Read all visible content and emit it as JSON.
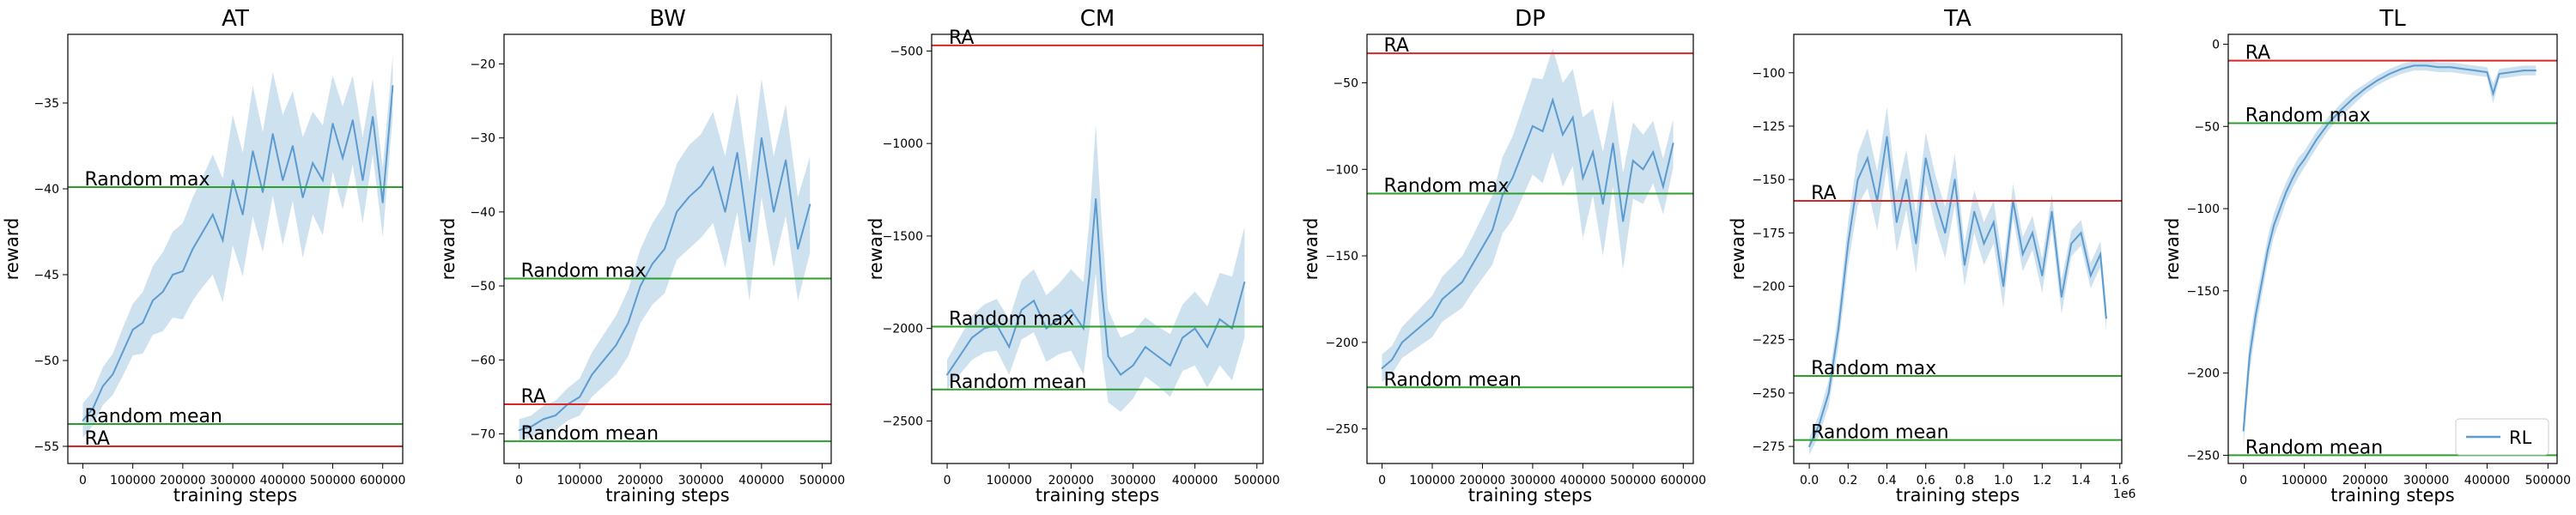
{
  "figure": {
    "legend_label": "RL"
  },
  "chart_data": [
    {
      "type": "line",
      "title": "AT",
      "xlabel": "training steps",
      "ylabel": "reward",
      "xlim": [
        -30000,
        640000
      ],
      "ylim": [
        -56,
        -31
      ],
      "xticks": [
        0,
        100000,
        200000,
        300000,
        400000,
        500000,
        600000
      ],
      "yticks": [
        -55,
        -50,
        -45,
        -40,
        -35
      ],
      "xtick_labels": [
        "0",
        "100000",
        "200000",
        "300000",
        "400000",
        "500000",
        "600000"
      ],
      "ytick_labels": [
        "−55",
        "−50",
        "−45",
        "−40",
        "−35"
      ],
      "offset_text": "",
      "hlines": [
        {
          "label": "Random max",
          "y": -39.9,
          "color": "#2ca02c"
        },
        {
          "label": "Random mean",
          "y": -53.7,
          "color": "#2ca02c"
        },
        {
          "label": "RA",
          "y": -55.0,
          "color": "#d62728"
        }
      ],
      "series": [
        {
          "x": [
            0,
            20000,
            40000,
            60000,
            80000,
            100000,
            120000,
            140000,
            160000,
            180000,
            200000,
            220000,
            240000,
            260000,
            280000,
            300000,
            320000,
            340000,
            360000,
            380000,
            400000,
            420000,
            440000,
            460000,
            480000,
            500000,
            520000,
            540000,
            560000,
            580000,
            600000,
            620000
          ],
          "y": [
            -53.5,
            -52.8,
            -51.5,
            -50.8,
            -49.5,
            -48.2,
            -47.8,
            -46.5,
            -46.0,
            -45.0,
            -44.8,
            -43.5,
            -42.5,
            -41.5,
            -43.0,
            -39.5,
            -41.5,
            -37.8,
            -40.2,
            -36.8,
            -39.5,
            -37.5,
            -40.5,
            -38.5,
            -39.5,
            -36.2,
            -38.2,
            -36.0,
            -39.5,
            -35.8,
            -40.8,
            -34.0
          ],
          "band": [
            1.0,
            1.0,
            1.1,
            1.2,
            1.4,
            1.5,
            1.8,
            2.0,
            2.3,
            2.5,
            2.8,
            3.0,
            3.2,
            3.5,
            3.6,
            3.8,
            3.6,
            3.8,
            3.5,
            3.6,
            3.8,
            3.2,
            3.5,
            3.0,
            3.2,
            2.8,
            3.0,
            2.6,
            2.5,
            2.2,
            2.0,
            1.8
          ]
        }
      ]
    },
    {
      "type": "line",
      "title": "BW",
      "xlabel": "training steps",
      "ylabel": "reward",
      "xlim": [
        -25000,
        515000
      ],
      "ylim": [
        -74,
        -16
      ],
      "xticks": [
        0,
        100000,
        200000,
        300000,
        400000,
        500000
      ],
      "yticks": [
        -70,
        -60,
        -50,
        -40,
        -30,
        -20
      ],
      "xtick_labels": [
        "0",
        "100000",
        "200000",
        "300000",
        "400000",
        "500000"
      ],
      "ytick_labels": [
        "−70",
        "−60",
        "−50",
        "−40",
        "−30",
        "−20"
      ],
      "offset_text": "",
      "hlines": [
        {
          "label": "Random max",
          "y": -49.0,
          "color": "#2ca02c"
        },
        {
          "label": "RA",
          "y": -66.0,
          "color": "#d62728"
        },
        {
          "label": "Random mean",
          "y": -71.0,
          "color": "#2ca02c"
        }
      ],
      "series": [
        {
          "x": [
            0,
            20000,
            40000,
            60000,
            80000,
            100000,
            120000,
            140000,
            160000,
            180000,
            200000,
            220000,
            240000,
            260000,
            280000,
            300000,
            320000,
            340000,
            360000,
            380000,
            400000,
            420000,
            440000,
            460000,
            480000
          ],
          "y": [
            -69.5,
            -69.0,
            -68.0,
            -67.5,
            -66.0,
            -65.0,
            -62.0,
            -60.0,
            -58.0,
            -55.0,
            -50.0,
            -47.0,
            -45.0,
            -40.0,
            -38.0,
            -36.5,
            -34.0,
            -40.0,
            -32.0,
            -44.0,
            -30.0,
            -40.0,
            -33.0,
            -45.0,
            -39.0
          ],
          "band": [
            1.5,
            1.5,
            1.8,
            2.0,
            2.2,
            2.5,
            3.0,
            3.5,
            4.0,
            4.5,
            5.0,
            5.5,
            6.0,
            6.5,
            7.0,
            7.0,
            7.5,
            7.5,
            8.0,
            8.0,
            8.0,
            7.5,
            7.5,
            7.0,
            6.5
          ]
        }
      ]
    },
    {
      "type": "line",
      "title": "CM",
      "xlabel": "training steps",
      "ylabel": "reward",
      "xlim": [
        -25000,
        510000
      ],
      "ylim": [
        -2730,
        -410
      ],
      "xticks": [
        0,
        100000,
        200000,
        300000,
        400000,
        500000
      ],
      "yticks": [
        -2500,
        -2000,
        -1500,
        -1000,
        -500
      ],
      "xtick_labels": [
        "0",
        "100000",
        "200000",
        "300000",
        "400000",
        "500000"
      ],
      "ytick_labels": [
        "−2500",
        "−2000",
        "−1500",
        "−1000",
        "−500"
      ],
      "offset_text": "",
      "hlines": [
        {
          "label": "RA",
          "y": -470,
          "color": "#d62728"
        },
        {
          "label": "Random max",
          "y": -1990,
          "color": "#2ca02c"
        },
        {
          "label": "Random mean",
          "y": -2330,
          "color": "#2ca02c"
        }
      ],
      "series": [
        {
          "x": [
            0,
            20000,
            40000,
            60000,
            80000,
            100000,
            120000,
            140000,
            160000,
            180000,
            200000,
            220000,
            230000,
            240000,
            250000,
            260000,
            280000,
            300000,
            320000,
            340000,
            360000,
            380000,
            400000,
            420000,
            440000,
            460000,
            480000
          ],
          "y": [
            -2250,
            -2150,
            -2050,
            -2000,
            -1980,
            -2100,
            -1900,
            -1850,
            -2000,
            -1950,
            -1900,
            -2000,
            -1700,
            -1300,
            -1800,
            -2150,
            -2250,
            -2200,
            -2100,
            -2150,
            -2200,
            -2050,
            -2000,
            -2100,
            -1950,
            -2000,
            -1750
          ],
          "band": [
            80,
            100,
            120,
            130,
            140,
            150,
            160,
            170,
            180,
            190,
            220,
            250,
            300,
            400,
            350,
            250,
            200,
            180,
            160,
            160,
            170,
            180,
            200,
            220,
            250,
            280,
            300
          ]
        }
      ]
    },
    {
      "type": "line",
      "title": "DP",
      "xlabel": "training steps",
      "ylabel": "reward",
      "xlim": [
        -30000,
        620000
      ],
      "ylim": [
        -270,
        -22
      ],
      "xticks": [
        0,
        100000,
        200000,
        300000,
        400000,
        500000,
        600000
      ],
      "yticks": [
        -250,
        -200,
        -150,
        -100,
        -50
      ],
      "xtick_labels": [
        "0",
        "100000",
        "200000",
        "300000",
        "400000",
        "500000",
        "600000"
      ],
      "ytick_labels": [
        "−250",
        "−200",
        "−150",
        "−100",
        "−50"
      ],
      "offset_text": "",
      "hlines": [
        {
          "label": "RA",
          "y": -33,
          "color": "#d62728"
        },
        {
          "label": "Random max",
          "y": -114,
          "color": "#2ca02c"
        },
        {
          "label": "Random mean",
          "y": -226,
          "color": "#2ca02c"
        }
      ],
      "series": [
        {
          "x": [
            0,
            20000,
            40000,
            60000,
            80000,
            100000,
            120000,
            140000,
            160000,
            180000,
            200000,
            220000,
            240000,
            260000,
            280000,
            300000,
            320000,
            340000,
            360000,
            380000,
            400000,
            420000,
            440000,
            460000,
            480000,
            500000,
            520000,
            540000,
            560000,
            580000
          ],
          "y": [
            -215,
            -210,
            -200,
            -195,
            -190,
            -185,
            -175,
            -170,
            -165,
            -155,
            -145,
            -135,
            -115,
            -105,
            -90,
            -75,
            -78,
            -60,
            -80,
            -70,
            -105,
            -90,
            -120,
            -85,
            -130,
            -95,
            -100,
            -90,
            -110,
            -85
          ],
          "band": [
            8,
            8,
            9,
            10,
            11,
            12,
            13,
            14,
            15,
            16,
            18,
            20,
            22,
            24,
            26,
            28,
            30,
            30,
            30,
            28,
            35,
            25,
            30,
            25,
            28,
            22,
            20,
            18,
            16,
            14
          ]
        }
      ]
    },
    {
      "type": "line",
      "title": "TA",
      "xlabel": "training steps",
      "ylabel": "reward",
      "xlim": [
        -80000,
        1610000
      ],
      "ylim": [
        -283,
        -82
      ],
      "xticks": [
        0,
        200000,
        400000,
        600000,
        800000,
        1000000,
        1200000,
        1400000,
        1600000
      ],
      "yticks": [
        -275,
        -250,
        -225,
        -200,
        -175,
        -150,
        -125,
        -100
      ],
      "xtick_labels": [
        "0.0",
        "0.2",
        "0.4",
        "0.6",
        "0.8",
        "1.0",
        "1.2",
        "1.4",
        "1.6"
      ],
      "ytick_labels": [
        "−275",
        "−250",
        "−225",
        "−200",
        "−175",
        "−150",
        "−125",
        "−100"
      ],
      "offset_text": "1e6",
      "hlines": [
        {
          "label": "RA",
          "y": -160,
          "color": "#d62728"
        },
        {
          "label": "Random max",
          "y": -242,
          "color": "#2ca02c"
        },
        {
          "label": "Random mean",
          "y": -272,
          "color": "#2ca02c"
        }
      ],
      "series": [
        {
          "x": [
            0,
            50000,
            100000,
            150000,
            200000,
            250000,
            300000,
            350000,
            400000,
            450000,
            500000,
            550000,
            600000,
            650000,
            700000,
            750000,
            800000,
            850000,
            900000,
            950000,
            1000000,
            1050000,
            1100000,
            1150000,
            1200000,
            1250000,
            1300000,
            1350000,
            1400000,
            1450000,
            1500000,
            1530000
          ],
          "y": [
            -275,
            -265,
            -250,
            -220,
            -180,
            -150,
            -140,
            -160,
            -130,
            -170,
            -150,
            -180,
            -140,
            -160,
            -175,
            -150,
            -190,
            -165,
            -180,
            -170,
            -200,
            -160,
            -185,
            -175,
            -195,
            -165,
            -205,
            -180,
            -175,
            -195,
            -185,
            -215
          ],
          "band": [
            4,
            5,
            6,
            8,
            10,
            12,
            14,
            14,
            14,
            14,
            14,
            14,
            12,
            12,
            12,
            12,
            10,
            10,
            10,
            10,
            10,
            8,
            8,
            8,
            8,
            8,
            8,
            6,
            6,
            6,
            6,
            6
          ]
        }
      ]
    },
    {
      "type": "line",
      "title": "TL",
      "xlabel": "training steps",
      "ylabel": "reward",
      "xlim": [
        -25000,
        515000
      ],
      "ylim": [
        -255,
        6
      ],
      "xticks": [
        0,
        100000,
        200000,
        300000,
        400000,
        500000
      ],
      "yticks": [
        -250,
        -200,
        -150,
        -100,
        -50,
        0
      ],
      "xtick_labels": [
        "0",
        "100000",
        "200000",
        "300000",
        "400000",
        "500000"
      ],
      "ytick_labels": [
        "−250",
        "−200",
        "−150",
        "−100",
        "−50",
        "0"
      ],
      "offset_text": "",
      "hlines": [
        {
          "label": "RA",
          "y": -10,
          "color": "#d62728"
        },
        {
          "label": "Random max",
          "y": -48,
          "color": "#2ca02c"
        },
        {
          "label": "Random mean",
          "y": -250,
          "color": "#2ca02c"
        }
      ],
      "series": [
        {
          "x": [
            0,
            10000,
            20000,
            30000,
            40000,
            50000,
            60000,
            70000,
            80000,
            90000,
            100000,
            120000,
            140000,
            160000,
            180000,
            200000,
            220000,
            240000,
            260000,
            280000,
            300000,
            320000,
            340000,
            360000,
            380000,
            400000,
            410000,
            420000,
            440000,
            460000,
            480000
          ],
          "y": [
            -235,
            -190,
            -165,
            -145,
            -125,
            -110,
            -100,
            -90,
            -82,
            -75,
            -70,
            -58,
            -48,
            -40,
            -33,
            -27,
            -22,
            -18,
            -15,
            -13,
            -13,
            -14,
            -14,
            -15,
            -16,
            -17,
            -30,
            -18,
            -17,
            -16,
            -16
          ],
          "band": [
            10,
            10,
            9,
            8,
            8,
            7,
            7,
            6,
            6,
            6,
            5,
            5,
            4,
            4,
            4,
            3,
            3,
            3,
            3,
            3,
            3,
            3,
            3,
            3,
            3,
            3,
            6,
            3,
            3,
            3,
            3
          ]
        }
      ]
    }
  ]
}
